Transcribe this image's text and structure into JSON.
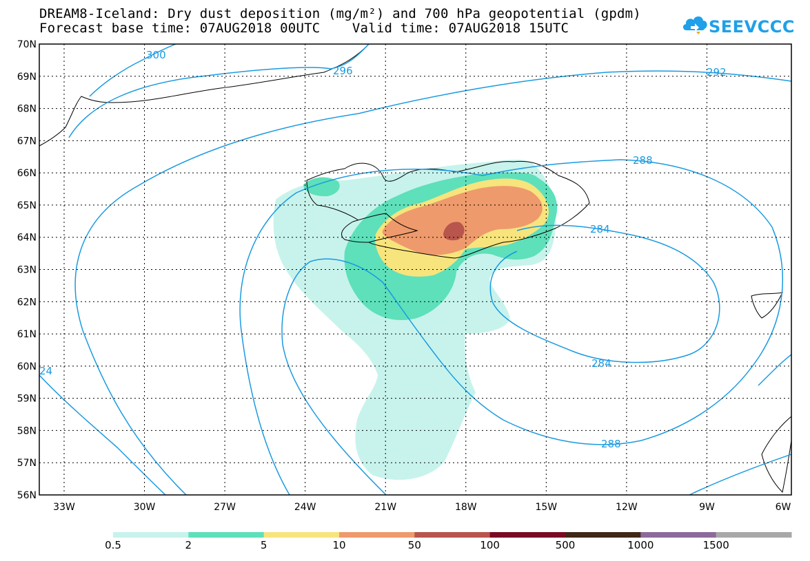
{
  "title_line1": "DREAM8-Iceland: Dry dust deposition (mg/m²) and 700 hPa geopotential (gpdm)",
  "title_line2": "Forecast base time: 07AUG2018 00UTC    Valid time: 07AUG2018 15UTC",
  "logo_text": "SEEVCCC",
  "lat_labels": [
    "70N",
    "69N",
    "68N",
    "67N",
    "66N",
    "65N",
    "64N",
    "63N",
    "62N",
    "61N",
    "60N",
    "59N",
    "58N",
    "57N",
    "56N"
  ],
  "lon_labels": [
    "33W",
    "30W",
    "27W",
    "24W",
    "21W",
    "18W",
    "15W",
    "12W",
    "9W",
    "6W"
  ],
  "contour_labels": [
    "300",
    "296",
    "292",
    "288",
    "284",
    "284",
    "288",
    "24"
  ],
  "colorbar": {
    "ticks": [
      "0.5",
      "2",
      "5",
      "10",
      "50",
      "100",
      "500",
      "1000",
      "1500"
    ],
    "colors": [
      "#c7f3ec",
      "#5ee0ba",
      "#f7e47c",
      "#ee9a6c",
      "#b8554c",
      "#7a0a24",
      "#3e2818",
      "#8c6b9c",
      "#a8a8a8"
    ]
  },
  "colors": {
    "contour": "#1a9ae0",
    "logo": "#1fa0e8"
  }
}
